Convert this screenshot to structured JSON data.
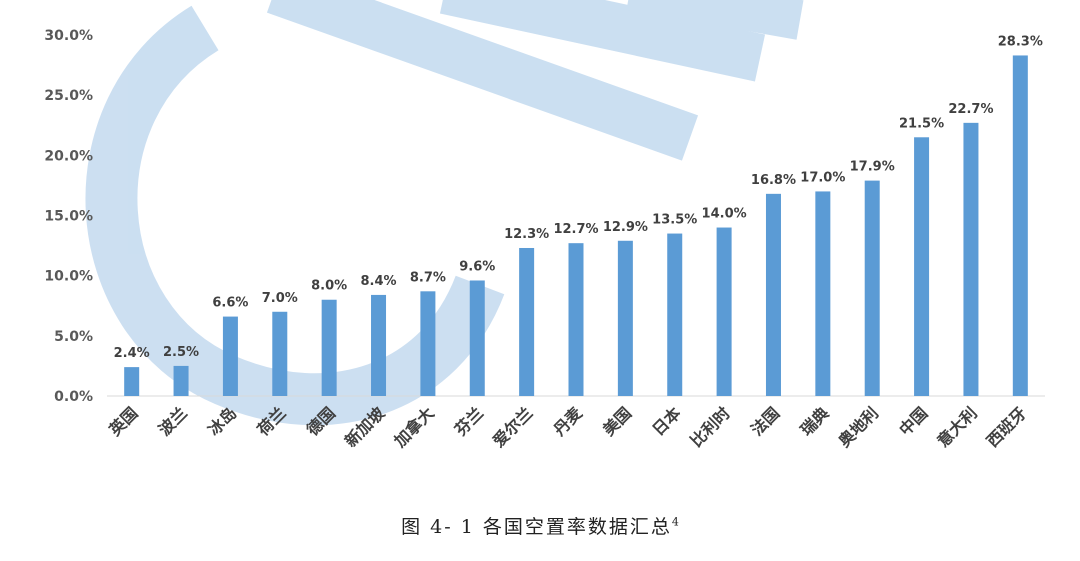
{
  "chart_data": {
    "type": "bar",
    "title": "",
    "xlabel": "",
    "ylabel": "",
    "categories": [
      "英国",
      "波兰",
      "冰岛",
      "荷兰",
      "德国",
      "新加坡",
      "加拿大",
      "芬兰",
      "爱尔兰",
      "丹麦",
      "美国",
      "日本",
      "比利时",
      "法国",
      "瑞典",
      "奥地利",
      "中国",
      "意大利",
      "西班牙"
    ],
    "values": [
      2.4,
      2.5,
      6.6,
      7.0,
      8.0,
      8.4,
      8.7,
      9.6,
      12.3,
      12.7,
      12.9,
      13.5,
      14.0,
      16.8,
      17.0,
      17.9,
      21.5,
      22.7,
      28.3
    ],
    "value_labels": [
      "2.4%",
      "2.5%",
      "6.6%",
      "7.0%",
      "8.0%",
      "8.4%",
      "8.7%",
      "9.6%",
      "12.3%",
      "12.7%",
      "12.9%",
      "13.5%",
      "14.0%",
      "16.8%",
      "17.0%",
      "17.9%",
      "21.5%",
      "22.7%",
      "28.3%"
    ],
    "y_ticks": [
      "0.0%",
      "5.0%",
      "10.0%",
      "15.0%",
      "20.0%",
      "25.0%",
      "30.0%"
    ],
    "ylim": [
      0,
      30
    ],
    "grid": false,
    "legend": "none",
    "bar_color": "#5B9BD5"
  },
  "caption": {
    "text": "图 4- 1 各国空置率数据汇总",
    "superscript": "4"
  },
  "watermark": {
    "color": "#C6DCF0"
  }
}
